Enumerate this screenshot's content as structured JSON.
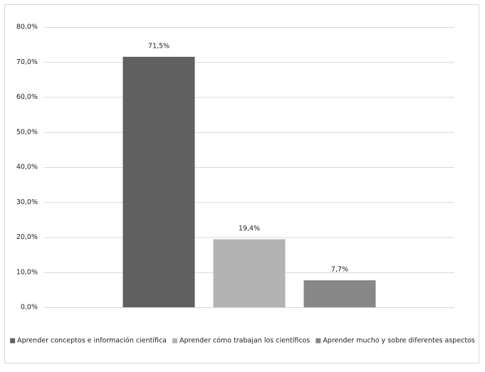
{
  "chart_data": {
    "type": "bar",
    "categories": [
      null
    ],
    "series": [
      {
        "name": "Aprender conceptos e información científica",
        "color": "#606060",
        "values": [
          71.5
        ],
        "value_labels": [
          "71,5%"
        ]
      },
      {
        "name": "Aprender cómo trabajan los científicos",
        "color": "#b3b3b3",
        "values": [
          19.4
        ],
        "value_labels": [
          "19,4%"
        ]
      },
      {
        "name": "Aprender mucho y sobre diferentes aspectos",
        "color": "#878787",
        "values": [
          7.7
        ],
        "value_labels": [
          "7,7%"
        ]
      }
    ],
    "ylim": [
      0,
      80
    ],
    "yticks": [
      {
        "value": 0,
        "label": "0,0%"
      },
      {
        "value": 10,
        "label": "10,0%"
      },
      {
        "value": 20,
        "label": "20,0%"
      },
      {
        "value": 30,
        "label": "30,0%"
      },
      {
        "value": 40,
        "label": "40,0%"
      },
      {
        "value": 50,
        "label": "50,0%"
      },
      {
        "value": 60,
        "label": "60,0%"
      },
      {
        "value": 70,
        "label": "70,0%"
      },
      {
        "value": 80,
        "label": "80,0%"
      }
    ],
    "grid": true,
    "legend": "bottom"
  }
}
